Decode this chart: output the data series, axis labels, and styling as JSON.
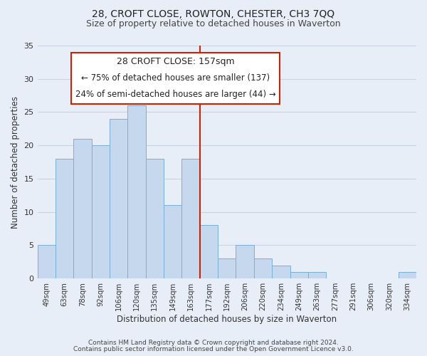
{
  "title1": "28, CROFT CLOSE, ROWTON, CHESTER, CH3 7QQ",
  "title2": "Size of property relative to detached houses in Waverton",
  "xlabel": "Distribution of detached houses by size in Waverton",
  "ylabel": "Number of detached properties",
  "footer1": "Contains HM Land Registry data © Crown copyright and database right 2024.",
  "footer2": "Contains public sector information licensed under the Open Government Licence v3.0.",
  "annotation_title": "28 CROFT CLOSE: 157sqm",
  "annotation_line1": "← 75% of detached houses are smaller (137)",
  "annotation_line2": "24% of semi-detached houses are larger (44) →",
  "bar_labels": [
    "49sqm",
    "63sqm",
    "78sqm",
    "92sqm",
    "106sqm",
    "120sqm",
    "135sqm",
    "149sqm",
    "163sqm",
    "177sqm",
    "192sqm",
    "206sqm",
    "220sqm",
    "234sqm",
    "249sqm",
    "263sqm",
    "277sqm",
    "291sqm",
    "306sqm",
    "320sqm",
    "334sqm"
  ],
  "bar_values": [
    5,
    18,
    21,
    20,
    24,
    26,
    18,
    11,
    18,
    8,
    3,
    5,
    3,
    2,
    1,
    1,
    0,
    0,
    0,
    0,
    1
  ],
  "bar_color": "#c5d8ee",
  "bar_edge_color": "#7aafd4",
  "reference_line_x": 8.5,
  "reference_line_color": "#cc2200",
  "ylim": [
    0,
    35
  ],
  "yticks": [
    0,
    5,
    10,
    15,
    20,
    25,
    30,
    35
  ],
  "bg_color": "#e8eef8",
  "grid_color": "#c8d4e4",
  "annotation_box_color": "#ffffff",
  "annotation_box_edge": "#cc2200",
  "title1_fontsize": 10,
  "title2_fontsize": 9,
  "annotation_fontsize": 8.5,
  "footer_fontsize": 6.5
}
